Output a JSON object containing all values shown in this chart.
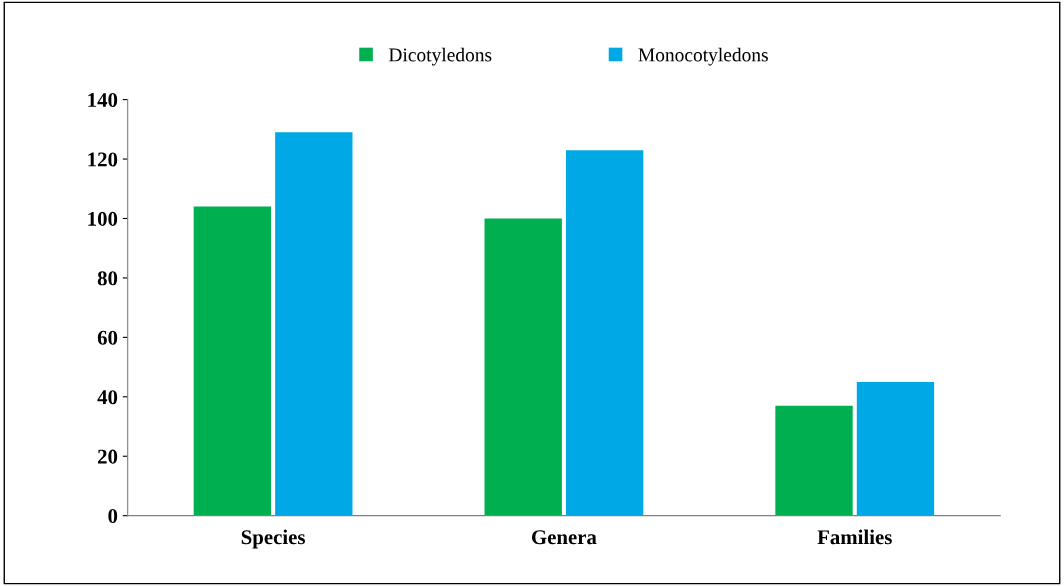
{
  "chart_data": {
    "type": "bar",
    "categories": [
      "Species",
      "Genera",
      "Families"
    ],
    "series": [
      {
        "name": "Dicotyledons",
        "color": "#00b050",
        "values": [
          104,
          100,
          37
        ]
      },
      {
        "name": "Monocotyledons",
        "color": "#00a9e6",
        "values": [
          129,
          123,
          45
        ]
      }
    ],
    "ylim": [
      0,
      140
    ],
    "yticks": [
      0,
      20,
      40,
      60,
      80,
      100,
      120,
      140
    ],
    "grid": false,
    "legend": "top"
  }
}
